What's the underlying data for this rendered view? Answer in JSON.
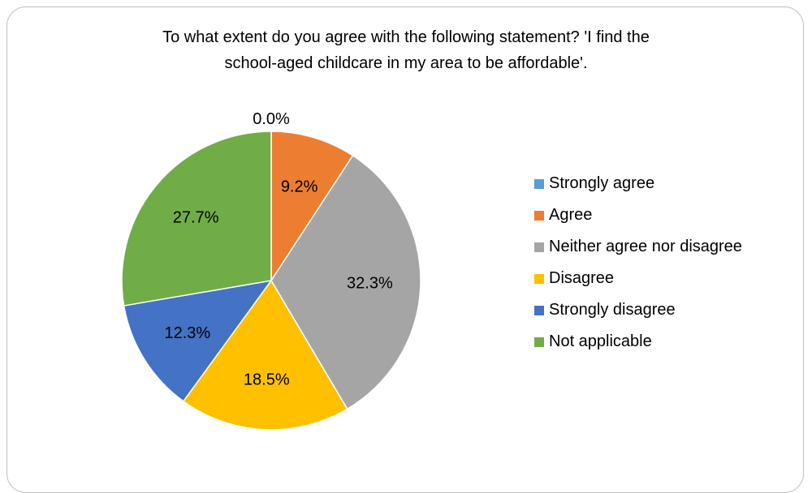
{
  "chart_data": {
    "type": "pie",
    "title_line1": "To what extent do you agree with the following statement? 'I find the",
    "title_line2": "school-aged childcare in my area to be affordable'.",
    "slices": [
      {
        "label": "Strongly agree",
        "value": 0.0,
        "data_label": "0.0%",
        "color": "#5b9bd5"
      },
      {
        "label": "Agree",
        "value": 9.2,
        "data_label": "9.2%",
        "color": "#ed7d31"
      },
      {
        "label": "Neither agree nor disagree",
        "value": 32.3,
        "data_label": "32.3%",
        "color": "#a5a5a5"
      },
      {
        "label": "Disagree",
        "value": 18.5,
        "data_label": "18.5%",
        "color": "#ffc000"
      },
      {
        "label": "Strongly disagree",
        "value": 12.3,
        "data_label": "12.3%",
        "color": "#4472c4"
      },
      {
        "label": "Not applicable",
        "value": 27.7,
        "data_label": "27.7%",
        "color": "#70ad47"
      }
    ],
    "legend_position": "right"
  }
}
